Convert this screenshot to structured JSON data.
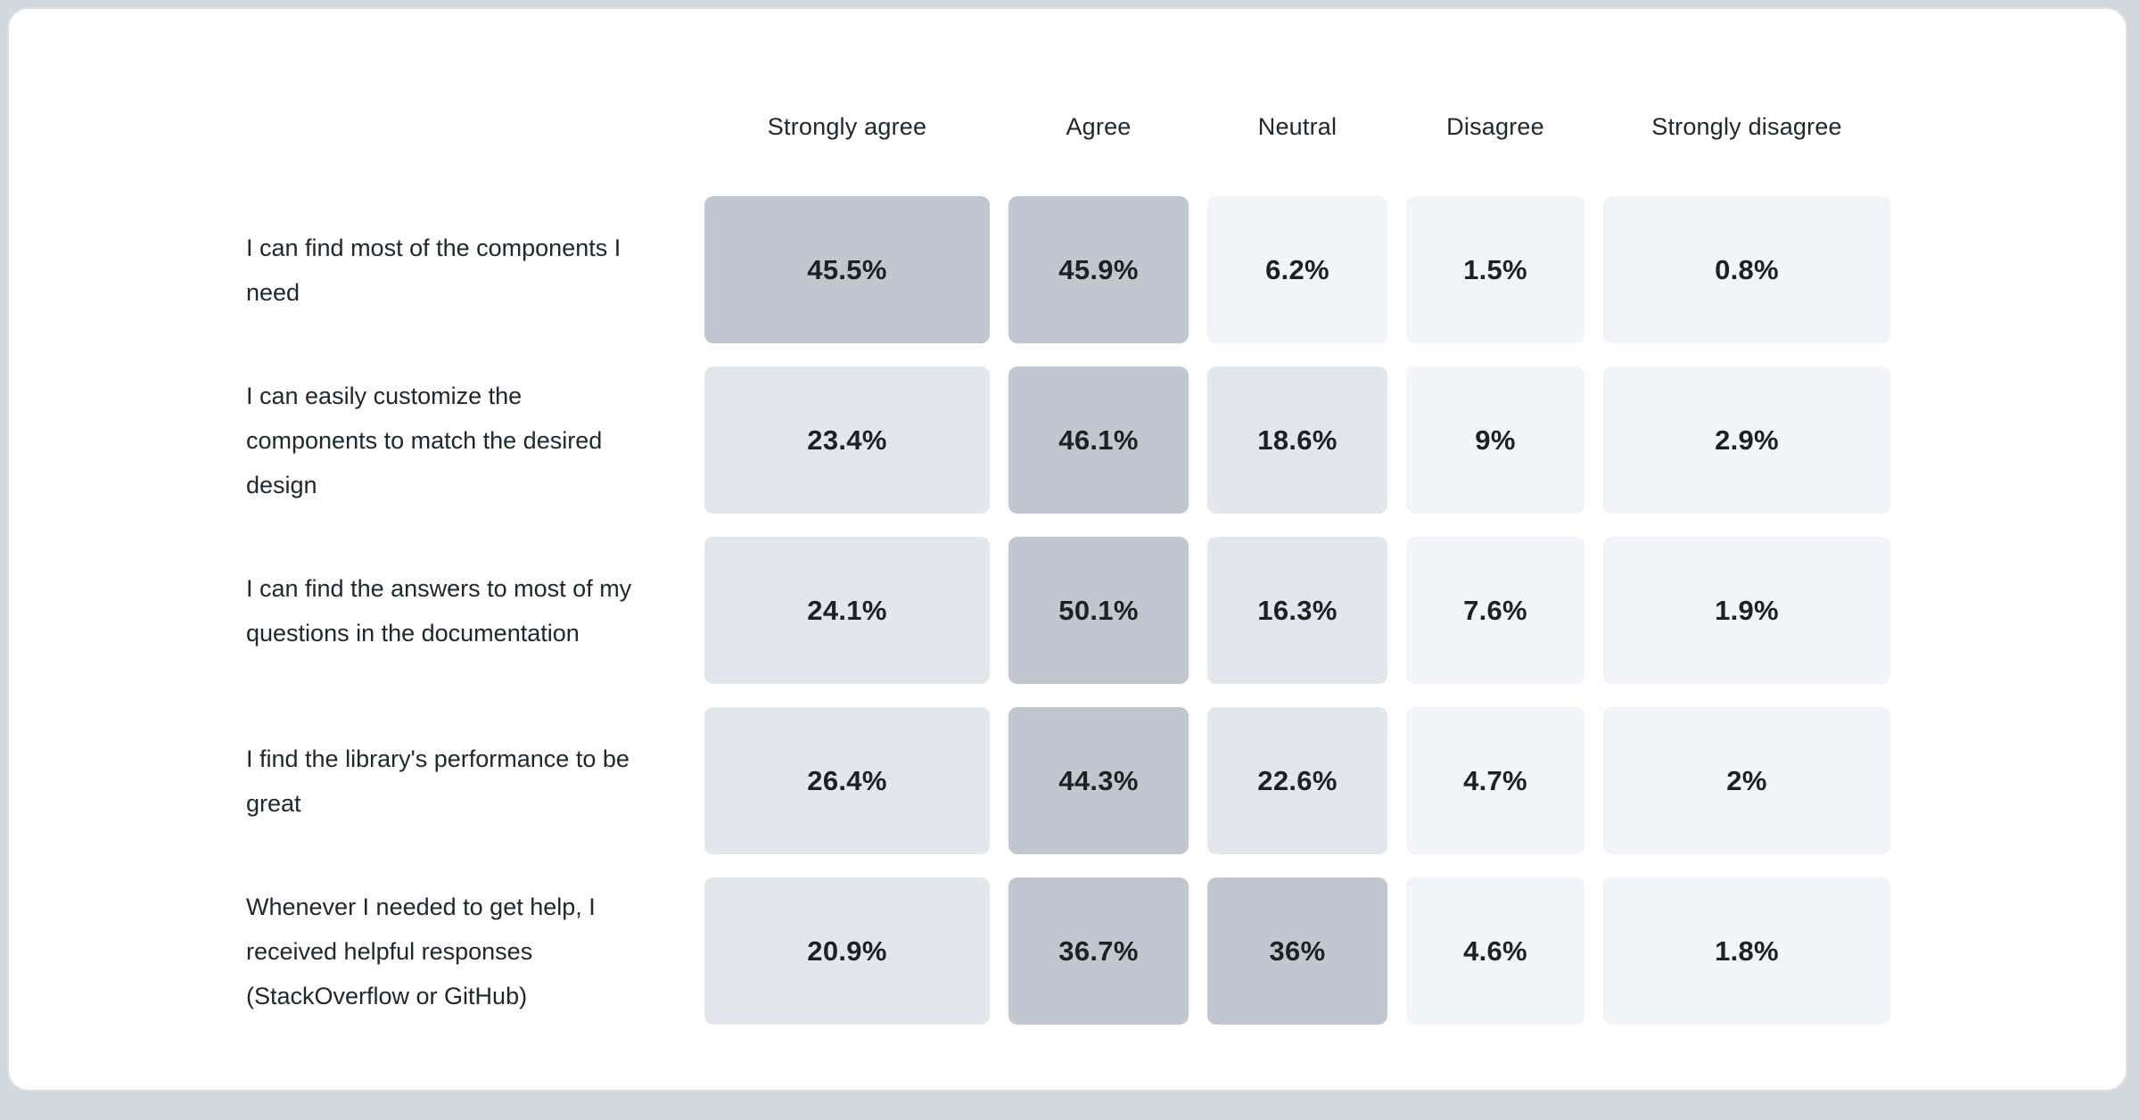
{
  "chart_data": {
    "type": "heatmap",
    "title": "",
    "columns": [
      "Strongly agree",
      "Agree",
      "Neutral",
      "Disagree",
      "Strongly disagree"
    ],
    "rows": [
      {
        "label": "I can find most of the components I need",
        "values": [
          45.5,
          45.9,
          6.2,
          1.5,
          0.8
        ],
        "display": [
          "45.5%",
          "45.9%",
          "6.2%",
          "1.5%",
          "0.8%"
        ]
      },
      {
        "label": "I can easily customize the components to match the desired design",
        "values": [
          23.4,
          46.1,
          18.6,
          9,
          2.9
        ],
        "display": [
          "23.4%",
          "46.1%",
          "18.6%",
          "9%",
          "2.9%"
        ]
      },
      {
        "label": "I can find the answers to most of my questions in the documentation",
        "values": [
          24.1,
          50.1,
          16.3,
          7.6,
          1.9
        ],
        "display": [
          "24.1%",
          "50.1%",
          "16.3%",
          "7.6%",
          "1.9%"
        ]
      },
      {
        "label": "I find the library's performance to be great",
        "values": [
          26.4,
          44.3,
          22.6,
          4.7,
          2
        ],
        "display": [
          "26.4%",
          "44.3%",
          "22.6%",
          "4.7%",
          "2%"
        ]
      },
      {
        "label": "Whenever I needed to get help, I received helpful responses (StackOverflow or GitHub)",
        "values": [
          20.9,
          36.7,
          36,
          4.6,
          1.8
        ],
        "display": [
          "20.9%",
          "36.7%",
          "36%",
          "4.6%",
          "1.8%"
        ]
      }
    ],
    "layout_hints": {
      "legend": "none",
      "grid": "off",
      "value_unit": "percent"
    },
    "color_scale": {
      "bins": [
        {
          "min": 30,
          "color": "#c1c7cf",
          "meaning": "high share"
        },
        {
          "min": 10,
          "color": "#e3e6ea",
          "meaning": "medium share"
        },
        {
          "min": 0,
          "color": "#f2f4f7",
          "meaning": "low share"
        }
      ],
      "text_color": "#1c2126"
    }
  }
}
